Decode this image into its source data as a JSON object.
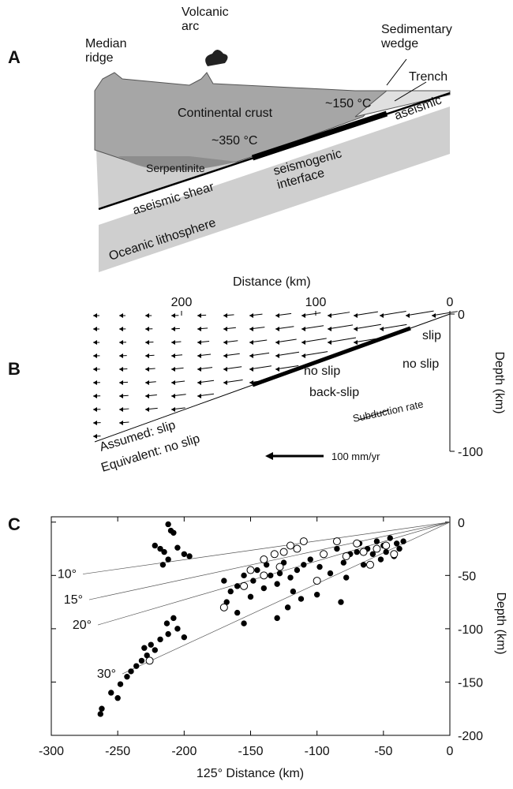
{
  "panel_a": {
    "label": "A",
    "median_ridge": "Median\nridge",
    "volcanic_arc": "Volcanic\narc",
    "sedimentary_wedge": "Sedimentary\nwedge",
    "trench": "Trench",
    "continental_crust": "Continental crust",
    "temp_150": "~150 °C",
    "temp_350": "~350 °C",
    "aseismic": "aseismic",
    "serpentinite": "Serpentinite",
    "seismogenic_interface": "seismogenic\ninterface",
    "aseismic_shear": "aseismic shear",
    "oceanic_lithosphere": "Oceanic lithosphere"
  },
  "panel_b": {
    "label": "B",
    "x_label": "Distance (km)",
    "y_label": "Depth (km)",
    "xlim": [
      0,
      200
    ],
    "xticks": [
      200,
      100,
      0
    ],
    "ylim": [
      -100,
      0
    ],
    "yticks": [
      0,
      -100
    ],
    "slip": "slip",
    "no_slip_1": "no slip",
    "no_slip_2": "no slip",
    "back_slip": "back-slip",
    "subduction_rate": "Subduction rate",
    "assumed": "Assumed:  slip",
    "equivalent": "Equivalent: no slip",
    "scale": "100 mm/yr"
  },
  "chart_data": {
    "type": "scatter",
    "label": "C",
    "x_label": "125° Distance (km)",
    "y_label": "Depth (km)",
    "xlim": [
      -300,
      0
    ],
    "ylim": [
      -200,
      5
    ],
    "xticks": [
      -300,
      -250,
      -200,
      -150,
      -100,
      -50,
      0
    ],
    "yticks": [
      0,
      -50,
      -100,
      -150,
      -200
    ],
    "dip_lines": [
      {
        "label": "10°",
        "angle": 10
      },
      {
        "label": "15°",
        "angle": 15
      },
      {
        "label": "20°",
        "angle": 20
      },
      {
        "label": "30°",
        "angle": 30
      }
    ],
    "series": [
      {
        "color": "#000000",
        "x": [
          -212,
          -210,
          -208,
          -218,
          -215,
          -205,
          -200,
          -212,
          -216,
          -196,
          -222,
          -262,
          -263,
          -255,
          -248,
          -240,
          -236,
          -232,
          -228,
          -222,
          -225,
          -218,
          -212,
          -205,
          -200,
          -213,
          -208,
          -230,
          -243,
          -250,
          -170,
          -165,
          -160,
          -155,
          -150,
          -148,
          -145,
          -140,
          -138,
          -135,
          -130,
          -128,
          -125,
          -120,
          -118,
          -115,
          -110,
          -105,
          -100,
          -98,
          -95,
          -90,
          -85,
          -80,
          -78,
          -75,
          -70,
          -68,
          -65,
          -62,
          -58,
          -55,
          -52,
          -50,
          -48,
          -45,
          -42,
          -40,
          -38,
          -35,
          -122,
          -112,
          -100,
          -82,
          -130,
          -160,
          -168,
          -155
        ],
        "y": [
          -2,
          -8,
          -10,
          -25,
          -28,
          -24,
          -30,
          -35,
          -40,
          -32,
          -22,
          -175,
          -180,
          -160,
          -152,
          -140,
          -135,
          -130,
          -125,
          -120,
          -115,
          -110,
          -105,
          -100,
          -108,
          -95,
          -90,
          -118,
          -145,
          -165,
          -55,
          -65,
          -60,
          -50,
          -70,
          -55,
          -45,
          -62,
          -40,
          -50,
          -58,
          -48,
          -38,
          -52,
          -65,
          -45,
          -40,
          -35,
          -55,
          -42,
          -30,
          -48,
          -25,
          -38,
          -52,
          -30,
          -28,
          -20,
          -40,
          -25,
          -30,
          -18,
          -35,
          -22,
          -28,
          -15,
          -32,
          -20,
          -25,
          -18,
          -80,
          -72,
          -68,
          -75,
          -90,
          -85,
          -75,
          -95
        ]
      },
      {
        "color": "#ffffff",
        "x": [
          -226,
          -150,
          -140,
          -132,
          -125,
          -120,
          -115,
          -110,
          -95,
          -85,
          -78,
          -70,
          -65,
          -55,
          -48,
          -42,
          -155,
          -170,
          -100,
          -60,
          -140,
          -128
        ],
        "y": [
          -130,
          -45,
          -35,
          -30,
          -28,
          -22,
          -25,
          -18,
          -30,
          -18,
          -32,
          -20,
          -28,
          -25,
          -22,
          -30,
          -60,
          -80,
          -55,
          -40,
          -50,
          -42
        ]
      }
    ]
  }
}
